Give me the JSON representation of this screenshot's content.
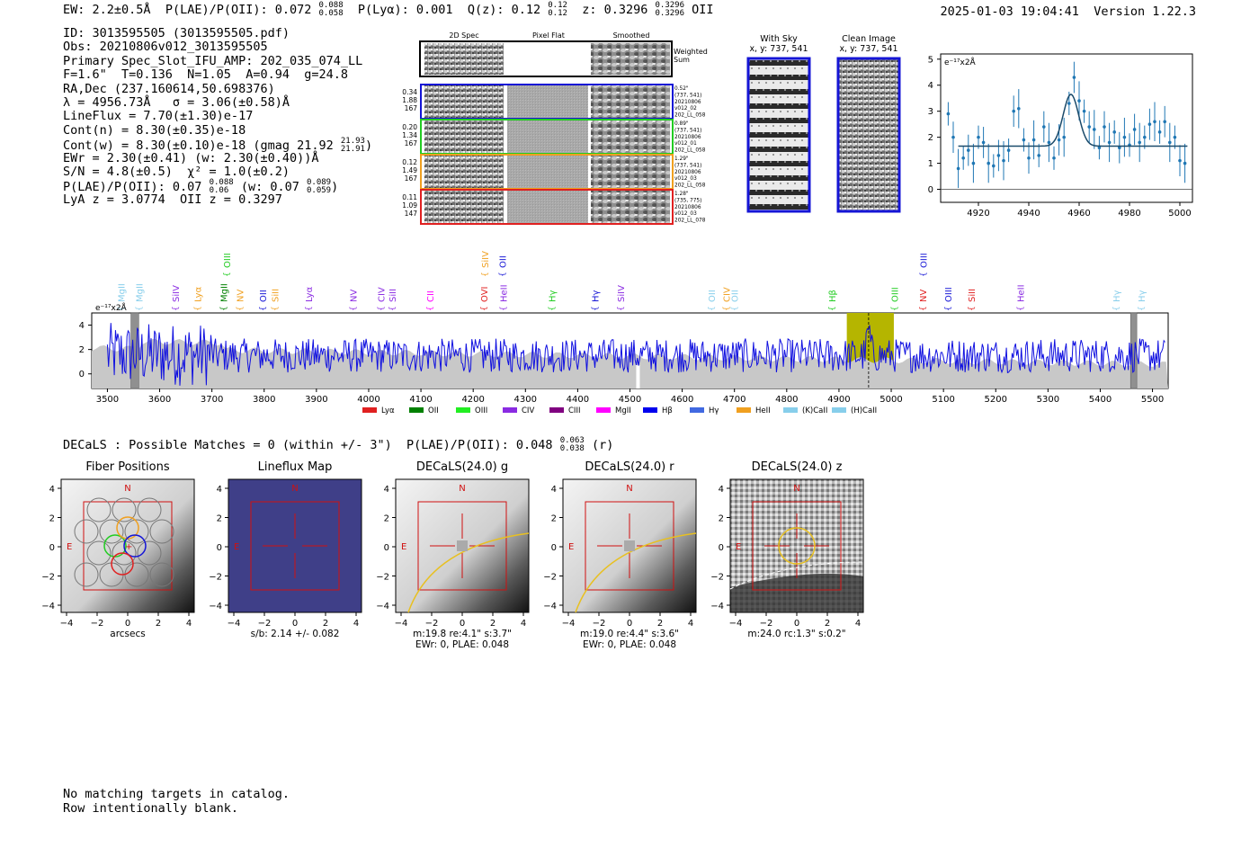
{
  "header": {
    "ew": "EW: 2.2±0.5Å",
    "plae": "P(LAE)/P(OII): 0.072",
    "plae_hi": "0.088",
    "plae_lo": "0.058",
    "plya": "P(Lyα): 0.001",
    "qz": "Q(z): 0.12",
    "qz_hi": "0.12",
    "qz_lo": "0.12",
    "z": "z: 0.3296",
    "z_hi": "0.3296",
    "z_lo": "0.3296",
    "z_line": "OII",
    "timestamp": "2025-01-03 19:04:41",
    "version": "Version 1.22.3"
  },
  "info": {
    "id": "ID: 3013595505 (3013595505.pdf)",
    "obs": "Obs: 20210806v012_3013595505",
    "primary": "Primary Spec_Slot_IFU_AMP: 202_035_074_LL",
    "params": "F=1.6\"  T=0.136  N=1.05  A=0.94  g=24.8",
    "radec": "RA,Dec (237.160614,50.698376)",
    "lambda": "λ = 4956.73Å   σ = 3.06(±0.58)Å",
    "lineflux": "LineFlux = 7.70(±1.30)e-17",
    "contn": "Cont(n) = 8.30(±0.35)e-18",
    "contw": "Cont(w) = 8.30(±0.10)e-18 (gmag 21.92",
    "contw_hi": "21.93",
    "contw_lo": "21.91",
    "contw_end": ")",
    "ewr": "EWr = 2.30(±0.41) (w: 2.30(±0.40))Å",
    "sn": "S/N = 4.8(±0.5)  χ² = 1.0(±0.2)",
    "plae": "P(LAE)/P(OII): 0.07",
    "plae_hi": "0.088",
    "plae_lo": "0.06",
    "plae_w": "(w: 0.07",
    "plae_w_hi": "0.089",
    "plae_w_lo": "0.059",
    "plae_end": ")",
    "lya": "LyA z = 3.0774  OII z = 0.3297"
  },
  "cutouts": {
    "headers": [
      "2D Spec",
      "Pixel Flat",
      "Smoothed"
    ],
    "weighted": "Weighted Sum",
    "rows": [
      {
        "w1": "0.34",
        "w2": "1.88",
        "w3": "167",
        "color": "#1515d6",
        "d1": "0.52\"",
        "d2": "(737, 541)",
        "d3": "20210806",
        "d4": "v012_02",
        "d5": "202_LL_058"
      },
      {
        "w1": "0.20",
        "w2": "1.34",
        "w3": "167",
        "color": "#22cc22",
        "d1": "0.89\"",
        "d2": "(737, 541)",
        "d3": "20210806",
        "d4": "v012_01",
        "d5": "202_LL_058"
      },
      {
        "w1": "0.12",
        "w2": "1.49",
        "w3": "167",
        "color": "#f0a020",
        "d1": "1.29\"",
        "d2": "(737, 541)",
        "d3": "20210806",
        "d4": "v012_03",
        "d5": "202_LL_058"
      },
      {
        "w1": "0.11",
        "w2": "1.09",
        "w3": "147",
        "color": "#e02020",
        "d1": "1.28\"",
        "d2": "(735, 775)",
        "d3": "20210806",
        "d4": "v012_03",
        "d5": "202_LL_078"
      }
    ],
    "with_sky": "With Sky",
    "with_sky_xy": "x, y: 737, 541",
    "clean": "Clean Image",
    "clean_xy": "x, y: 737, 541"
  },
  "zoom_chart": {
    "unit_label": "e⁻¹⁷x2Å",
    "xticks": [
      "4920",
      "4940",
      "4960",
      "4980",
      "5000"
    ],
    "yticks": [
      "0",
      "1",
      "2",
      "3",
      "4",
      "5"
    ]
  },
  "spectrum": {
    "unit_label": "e⁻¹⁷x2Å",
    "xticks": [
      "3500",
      "3600",
      "3700",
      "3800",
      "3900",
      "4000",
      "4100",
      "4200",
      "4300",
      "4400",
      "4500",
      "4600",
      "4700",
      "4800",
      "4900",
      "5000",
      "5100",
      "5200",
      "5300",
      "5400",
      "5500"
    ],
    "yticks": [
      "0",
      "2",
      "4"
    ],
    "line_labels": [
      {
        "t": "MgII",
        "c": "#87ceeb",
        "w": 3526,
        "r": 1
      },
      {
        "t": "MgII",
        "c": "#87ceeb",
        "w": 3560,
        "r": 1
      },
      {
        "t": "SiIV",
        "c": "#8a2be2",
        "w": 3630,
        "r": 1
      },
      {
        "t": "Lyα",
        "c": "#f0a020",
        "w": 3672,
        "r": 1
      },
      {
        "t": "MgII",
        "c": "#008000",
        "w": 3722,
        "r": 1
      },
      {
        "t": "OIII",
        "c": "#22cc22",
        "w": 3728,
        "r": 0
      },
      {
        "t": "NV",
        "c": "#f0a020",
        "w": 3753,
        "r": 1
      },
      {
        "t": "OII",
        "c": "#1515d6",
        "w": 3797,
        "r": 1
      },
      {
        "t": "SiII",
        "c": "#f0a020",
        "w": 3820,
        "r": 1
      },
      {
        "t": "Lyα",
        "c": "#8a2be2",
        "w": 3885,
        "r": 1
      },
      {
        "t": "NV",
        "c": "#8a2be2",
        "w": 3970,
        "r": 1
      },
      {
        "t": "CIV",
        "c": "#8a2be2",
        "w": 4023,
        "r": 1
      },
      {
        "t": "SiII",
        "c": "#8a2be2",
        "w": 4045,
        "r": 1
      },
      {
        "t": "CII",
        "c": "#ff00ff",
        "w": 4117,
        "r": 1
      },
      {
        "t": "OVI",
        "c": "#e02020",
        "w": 4220,
        "r": 1
      },
      {
        "t": "SiIV",
        "c": "#f0a020",
        "w": 4222,
        "r": 0
      },
      {
        "t": "OII",
        "c": "#1515d6",
        "w": 4256,
        "r": 0
      },
      {
        "t": "HeII",
        "c": "#8a2be2",
        "w": 4257,
        "r": 1
      },
      {
        "t": "Hγ",
        "c": "#22cc22",
        "w": 4350,
        "r": 1
      },
      {
        "t": "Hγ",
        "c": "#1515d6",
        "w": 4433,
        "r": 1
      },
      {
        "t": "SiIV",
        "c": "#8a2be2",
        "w": 4482,
        "r": 1
      },
      {
        "t": "OII",
        "c": "#87ceeb",
        "w": 4656,
        "r": 1
      },
      {
        "t": "CIV",
        "c": "#f0a020",
        "w": 4684,
        "r": 1
      },
      {
        "t": "OII",
        "c": "#87ceeb",
        "w": 4700,
        "r": 1
      },
      {
        "t": "Hβ",
        "c": "#22cc22",
        "w": 4886,
        "r": 1
      },
      {
        "t": "OIII",
        "c": "#22cc22",
        "w": 5006,
        "r": 1
      },
      {
        "t": "OIII",
        "c": "#1515d6",
        "w": 5061,
        "r": 0
      },
      {
        "t": "NV",
        "c": "#e02020",
        "w": 5060,
        "r": 1
      },
      {
        "t": "OIII",
        "c": "#1515d6",
        "w": 5108,
        "r": 1
      },
      {
        "t": "SiII",
        "c": "#e02020",
        "w": 5153,
        "r": 1
      },
      {
        "t": "HeII",
        "c": "#8a2be2",
        "w": 5247,
        "r": 1
      },
      {
        "t": "Hγ",
        "c": "#87ceeb",
        "w": 5430,
        "r": 1
      },
      {
        "t": "Hγ",
        "c": "#87ceeb",
        "w": 5478,
        "r": 1
      }
    ],
    "legend": [
      {
        "t": "Lyα",
        "c": "#e02020"
      },
      {
        "t": "OII",
        "c": "#008000"
      },
      {
        "t": "OIII",
        "c": "#22ee22"
      },
      {
        "t": "CIV",
        "c": "#8a2be2"
      },
      {
        "t": "CIII",
        "c": "#800080"
      },
      {
        "t": "MgII",
        "c": "#ff00ff"
      },
      {
        "t": "Hβ",
        "c": "#0000ee"
      },
      {
        "t": "Hγ",
        "c": "#4169e1"
      },
      {
        "t": "HeII",
        "c": "#f0a020"
      },
      {
        "t": "(K)CaII",
        "c": "#87ceeb"
      },
      {
        "t": "(H)CaII",
        "c": "#87ceeb"
      }
    ]
  },
  "decals_line": {
    "text": "DECaLS : Possible Matches = 0 (within +/- 3\")  P(LAE)/P(OII): 0.048",
    "hi": "0.063",
    "lo": "0.038",
    "end": "(r)"
  },
  "panels": [
    {
      "title": "Fiber Positions",
      "xlabel": "arcsecs",
      "sub1": "",
      "sub2": ""
    },
    {
      "title": "Lineflux Map",
      "xlabel": "s/b: 2.14 +/- 0.082",
      "sub1": "",
      "sub2": ""
    },
    {
      "title": "DECaLS(24.0) g",
      "xlabel": "m:19.8  re:4.1\"  s:3.7\"",
      "sub1": "EWr: 0, PLAE: 0.048",
      "sub2": ""
    },
    {
      "title": "DECaLS(24.0) r",
      "xlabel": "m:19.0  re:4.4\"  s:3.6\"",
      "sub1": "EWr: 0, PLAE: 0.048",
      "sub2": ""
    },
    {
      "title": "DECaLS(24.0) z",
      "xlabel": "m:24.0 rc:1.3\"  s:0.2\"",
      "sub1": "",
      "sub2": ""
    }
  ],
  "panel_labels": {
    "north": "N",
    "east": "E",
    "xticks": [
      "−4",
      "−2",
      "0",
      "2",
      "4"
    ],
    "yticks": [
      "4",
      "2",
      "0",
      "−2",
      "−4"
    ]
  },
  "footer": {
    "line1": "No matching targets in catalog.",
    "line2": "Row intentionally blank."
  },
  "chart_data": [
    {
      "type": "scatter",
      "title": "",
      "xlabel": "",
      "ylabel": "e-17x2Å",
      "xlim": [
        4905,
        5005
      ],
      "ylim": [
        -0.5,
        5.2
      ],
      "series": [
        {
          "name": "data",
          "x": [
            4908,
            4910,
            4912,
            4914,
            4916,
            4918,
            4920,
            4922,
            4924,
            4926,
            4928,
            4930,
            4932,
            4934,
            4936,
            4938,
            4940,
            4942,
            4944,
            4946,
            4948,
            4950,
            4952,
            4954,
            4956,
            4958,
            4960,
            4962,
            4964,
            4966,
            4968,
            4970,
            4972,
            4974,
            4976,
            4978,
            4980,
            4982,
            4984,
            4986,
            4988,
            4990,
            4992,
            4994,
            4996,
            4998,
            5000,
            5002
          ],
          "y": [
            2.9,
            2.0,
            0.8,
            1.2,
            1.5,
            1.0,
            2.0,
            1.8,
            1.0,
            0.9,
            1.3,
            1.1,
            1.5,
            3.0,
            3.1,
            1.9,
            1.2,
            1.9,
            1.3,
            2.4,
            1.8,
            1.2,
            1.9,
            2.0,
            3.3,
            4.3,
            3.4,
            3.0,
            2.4,
            2.3,
            1.6,
            2.4,
            1.8,
            2.2,
            1.6,
            2.0,
            1.7,
            2.3,
            1.8,
            2.0,
            2.5,
            2.6,
            2.2,
            2.6,
            1.8,
            2.0,
            1.1,
            1.0
          ]
        },
        {
          "name": "gaussian fit",
          "center": 4956.73,
          "sigma": 3.06,
          "continuum": 1.66,
          "peak": 3.65
        }
      ]
    },
    {
      "type": "line",
      "title": "",
      "xlabel": "",
      "ylabel": "e-17x2Å",
      "xlim": [
        3470,
        5530
      ],
      "ylim": [
        -1.2,
        5.0
      ],
      "highlight_range": [
        4915,
        5005
      ],
      "line_center": 4956.73,
      "grey_bands": [
        [
          3545,
          3560
        ],
        [
          5458,
          5470
        ]
      ],
      "series": [
        {
          "name": "spectrum",
          "description": "noisy blue spectrum around 1.5 with peak ~3.5 at 4957"
        }
      ]
    }
  ]
}
